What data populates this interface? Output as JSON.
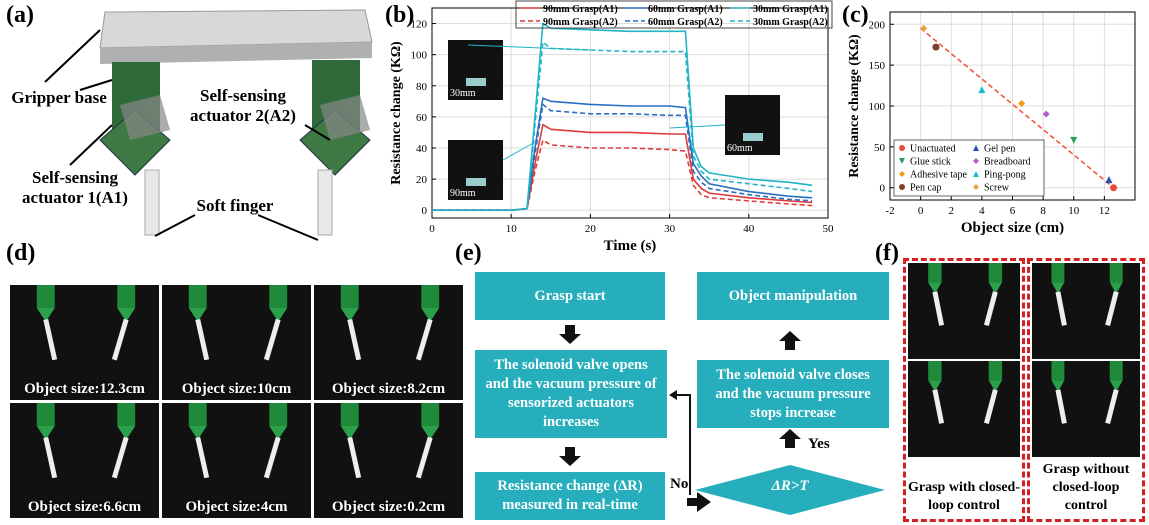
{
  "panel_labels": [
    "(a)",
    "(b)",
    "(c)",
    "(d)",
    "(e)",
    "(f)"
  ],
  "panel_a": {
    "labels": [
      "Gripper base",
      "Self-sensing actuator 2(A2)",
      "Self-sensing actuator 1(A1)",
      "Soft finger"
    ]
  },
  "chart_data": [
    {
      "type": "line",
      "x_label": "Time (s)",
      "y_label": "Resistance change (KΩ)",
      "x": [
        0,
        5,
        10,
        12,
        13,
        14,
        15,
        20,
        25,
        30,
        32,
        33,
        34,
        35,
        40,
        45,
        48
      ],
      "series": [
        {
          "name": "90mm Grasp(A1)",
          "color": "#e03a3a",
          "dash": false,
          "values": [
            0,
            0,
            0,
            1,
            30,
            55,
            52,
            50,
            50,
            49,
            49,
            20,
            14,
            11,
            8,
            6,
            5
          ]
        },
        {
          "name": "60mm Grasp(A1)",
          "color": "#2a6fc0",
          "dash": false,
          "values": [
            0,
            0,
            0,
            1,
            40,
            72,
            70,
            68,
            67,
            67,
            66,
            30,
            22,
            17,
            12,
            9,
            8
          ]
        },
        {
          "name": "30mm Grasp(A1)",
          "color": "#20b5c5",
          "dash": false,
          "values": [
            0,
            0,
            0,
            1,
            60,
            120,
            117,
            116,
            115,
            115,
            115,
            40,
            28,
            24,
            20,
            18,
            16
          ]
        },
        {
          "name": "90mm Grasp(A2)",
          "color": "#e03a3a",
          "dash": true,
          "values": [
            0,
            0,
            0,
            1,
            25,
            45,
            42,
            40,
            40,
            39,
            38,
            16,
            10,
            8,
            6,
            4,
            3
          ]
        },
        {
          "name": "60mm Grasp(A2)",
          "color": "#2a6fc0",
          "dash": true,
          "values": [
            0,
            0,
            0,
            1,
            36,
            68,
            64,
            62,
            62,
            61,
            61,
            25,
            18,
            14,
            10,
            7,
            6
          ]
        },
        {
          "name": "30mm Grasp(A2)",
          "color": "#20b5c5",
          "dash": true,
          "values": [
            0,
            0,
            0,
            1,
            55,
            108,
            104,
            103,
            102,
            102,
            102,
            35,
            25,
            20,
            17,
            14,
            12
          ]
        }
      ],
      "xlim": [
        0,
        50
      ],
      "xticks": [
        0,
        10,
        20,
        30,
        40,
        50
      ],
      "ylim": [
        -5,
        130
      ],
      "yticks": [
        0,
        20,
        40,
        60,
        80,
        100,
        120
      ],
      "grid": true,
      "annotations": [
        "30mm",
        "60mm",
        "90mm"
      ]
    },
    {
      "type": "scatter",
      "x_label": "Object size (cm)",
      "y_label": "Resistance change (KΩ)",
      "series": [
        {
          "name": "Unactuated",
          "color": "#e74c3c",
          "marker": "circle",
          "x": [
            12.6
          ],
          "values": [
            0
          ]
        },
        {
          "name": "Glue stick",
          "color": "#2ca05a",
          "marker": "triangle-down",
          "x": [
            10
          ],
          "values": [
            58
          ]
        },
        {
          "name": "Adhesive tape",
          "color": "#f39c12",
          "marker": "diamond",
          "x": [
            6.6
          ],
          "values": [
            103
          ]
        },
        {
          "name": "Pen cap",
          "color": "#7b3f2a",
          "marker": "circle",
          "x": [
            1
          ],
          "values": [
            172
          ]
        },
        {
          "name": "Gel pen",
          "color": "#2c4fbf",
          "marker": "triangle-up",
          "x": [
            12.3
          ],
          "values": [
            10
          ]
        },
        {
          "name": "Breadboard",
          "color": "#b05fd0",
          "marker": "diamond",
          "x": [
            8.2
          ],
          "values": [
            90
          ]
        },
        {
          "name": "Ping-pong",
          "color": "#17becf",
          "marker": "triangle-up",
          "x": [
            4
          ],
          "values": [
            120
          ]
        },
        {
          "name": "Screw",
          "color": "#e6a23c",
          "marker": "diamond",
          "x": [
            0.2
          ],
          "values": [
            195
          ]
        }
      ],
      "trend_line": {
        "color": "#f05a3a",
        "x": [
          0,
          12.6
        ],
        "values": [
          195,
          0
        ]
      },
      "xlim": [
        -2,
        14
      ],
      "xticks": [
        -2,
        0,
        2,
        4,
        6,
        8,
        10,
        12
      ],
      "ylim": [
        -15,
        215
      ],
      "yticks": [
        0,
        50,
        100,
        150,
        200
      ],
      "grid": true
    }
  ],
  "panel_d": {
    "captions": [
      "Object size:12.3cm",
      "Object size:10cm",
      "Object size:8.2cm",
      "Object size:6.6cm",
      "Object size:4cm",
      "Object size:0.2cm"
    ]
  },
  "flowchart": {
    "nodes": [
      "Grasp start",
      "The solenoid valve opens and the vacuum pressure of sensorized actuators increases",
      "Resistance change (ΔR) measured in real-time",
      "ΔR>T",
      "The solenoid valve closes and the vacuum pressure stops increase",
      "Object manipulation"
    ],
    "edge_labels": [
      "No",
      "Yes"
    ]
  },
  "panel_f": {
    "captions": [
      "Grasp with closed-loop control",
      "Grasp without closed-loop control"
    ]
  }
}
